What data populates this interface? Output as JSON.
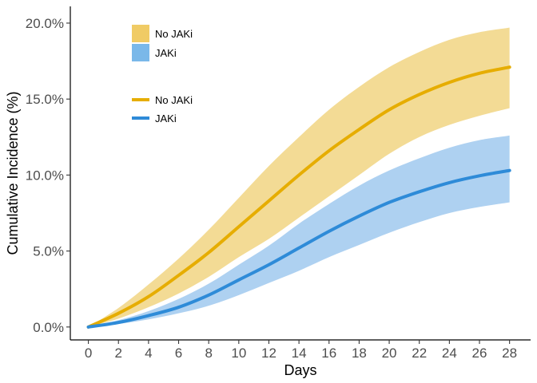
{
  "chart_data": {
    "type": "area",
    "title": "",
    "xlabel": "Days",
    "ylabel": "Cumulative Incidence (%)",
    "xlim": [
      -1.2,
      29.4
    ],
    "ylim": [
      -0.85,
      21.1
    ],
    "x_ticks": [
      0,
      2,
      4,
      6,
      8,
      10,
      12,
      14,
      16,
      18,
      20,
      22,
      24,
      26,
      28
    ],
    "x_tick_labels": [
      "0",
      "2",
      "4",
      "6",
      "8",
      "10",
      "12",
      "14",
      "16",
      "18",
      "20",
      "22",
      "24",
      "26",
      "28"
    ],
    "y_ticks": [
      0,
      5,
      10,
      15,
      20
    ],
    "y_tick_labels": [
      "0.0%",
      "5.0%",
      "10.0%",
      "15.0%",
      "20.0%"
    ],
    "grid": false,
    "x": [
      0,
      2,
      4,
      6,
      8,
      10,
      12,
      14,
      16,
      18,
      20,
      22,
      24,
      26,
      28
    ],
    "series": [
      {
        "name": "No JAKi",
        "line_color": "#E6AD00",
        "band_color": "#F3DB95",
        "values": [
          0.0,
          0.9,
          2.0,
          3.4,
          4.9,
          6.6,
          8.3,
          10.0,
          11.6,
          13.0,
          14.3,
          15.3,
          16.1,
          16.7,
          17.1
        ],
        "lower": [
          0.0,
          0.55,
          1.3,
          2.2,
          3.3,
          4.6,
          5.8,
          7.2,
          8.6,
          10.0,
          11.4,
          12.5,
          13.3,
          13.9,
          14.4
        ],
        "upper": [
          0.0,
          1.25,
          2.8,
          4.5,
          6.4,
          8.5,
          10.6,
          12.5,
          14.3,
          15.8,
          17.1,
          18.1,
          18.9,
          19.4,
          19.7
        ]
      },
      {
        "name": "JAKi",
        "line_color": "#2E8BD8",
        "band_color": "#AED1F1",
        "values": [
          0.0,
          0.3,
          0.75,
          1.3,
          2.1,
          3.1,
          4.1,
          5.2,
          6.3,
          7.3,
          8.2,
          8.9,
          9.5,
          9.95,
          10.3
        ],
        "lower": [
          0.0,
          0.2,
          0.5,
          0.9,
          1.4,
          2.1,
          2.9,
          3.7,
          4.6,
          5.4,
          6.2,
          6.9,
          7.5,
          7.9,
          8.2
        ],
        "upper": [
          0.0,
          0.45,
          1.05,
          1.85,
          2.85,
          4.1,
          5.35,
          6.8,
          8.1,
          9.3,
          10.3,
          11.1,
          11.8,
          12.3,
          12.6
        ]
      }
    ],
    "legends": [
      {
        "kind": "fill",
        "placement": "top-left",
        "entries": [
          {
            "label": "No JAKi",
            "color": "#F0CB65"
          },
          {
            "label": "JAKi",
            "color": "#7AB8E9"
          }
        ]
      },
      {
        "kind": "line",
        "placement": "top-left",
        "entries": [
          {
            "label": "No JAKi",
            "color": "#E6AD00"
          },
          {
            "label": "JAKi",
            "color": "#2E8BD8"
          }
        ]
      }
    ]
  }
}
